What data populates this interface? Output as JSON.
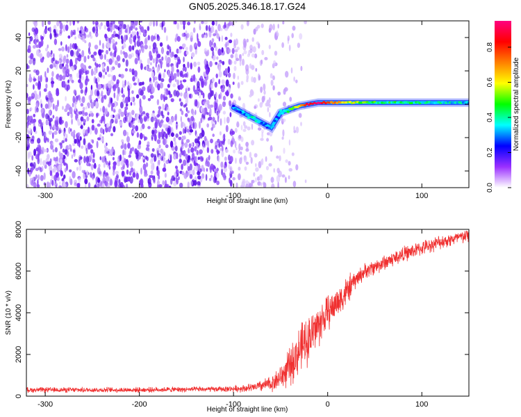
{
  "title": "GN05.2025.346.18.17.G24",
  "colors": {
    "scatter_base": "#7a2ef5",
    "ridge_blue": "#1f3dff",
    "ridge_cyan": "#00e5ff",
    "ridge_green": "#22e022",
    "ridge_red": "#ff2a00",
    "snr_line": "#f03030"
  },
  "chart_data": [
    {
      "type": "heatmap",
      "name": "spectrogram",
      "xlabel": "Height of straight line (km)",
      "ylabel": "Frequency (Hz)",
      "xlim": [
        -320,
        150
      ],
      "ylim": [
        -50,
        50
      ],
      "x_ticks": [
        -300,
        -200,
        -100,
        0,
        100
      ],
      "x_tick_labels": [
        "-300",
        "-200",
        "-100",
        "0",
        "100"
      ],
      "y_ticks": [
        -40,
        -20,
        0,
        20,
        40
      ],
      "y_tick_labels": [
        "-40",
        "-20",
        "0",
        "20",
        "40"
      ],
      "colorbar": {
        "label": "Normalized spectral amplitude",
        "range": [
          0,
          0.95
        ],
        "ticks": [
          0.0,
          0.2,
          0.4,
          0.6,
          0.8
        ],
        "tick_labels": [
          "0.0",
          "0.2",
          "0.4",
          "0.6",
          "0.8"
        ],
        "colormap": [
          "#ffffff",
          "#9b30ff",
          "#0000ff",
          "#00ffff",
          "#00ff00",
          "#ffff00",
          "#ff8000",
          "#ff0000",
          "#ff0080"
        ]
      },
      "noise_region_x": [
        -320,
        -60
      ],
      "ridge": {
        "x": [
          -100,
          -90,
          -80,
          -70,
          -60,
          -50,
          -40,
          -30,
          -20,
          -10,
          0,
          20,
          50,
          100,
          150
        ],
        "frequency": [
          -2,
          -5,
          -8,
          -11,
          -14,
          -5,
          -3,
          -1,
          0,
          1,
          1,
          1,
          1,
          1,
          1
        ],
        "amplitude": [
          0.2,
          0.3,
          0.35,
          0.3,
          0.25,
          0.3,
          0.5,
          0.7,
          0.85,
          0.9,
          0.8,
          0.6,
          0.45,
          0.4,
          0.35
        ]
      }
    },
    {
      "type": "line",
      "name": "snr",
      "xlabel": "Height of straight line (km)",
      "ylabel": "SNR (10 * v/v)",
      "xlim": [
        -320,
        150
      ],
      "ylim": [
        0,
        8000
      ],
      "x_ticks": [
        -300,
        -200,
        -100,
        0,
        100
      ],
      "x_tick_labels": [
        "-300",
        "-200",
        "-100",
        "0",
        "100"
      ],
      "y_ticks": [
        0,
        2000,
        4000,
        6000,
        8000
      ],
      "y_tick_labels": [
        "0",
        "2000",
        "4000",
        "6000",
        "8000"
      ],
      "series": [
        {
          "x": [
            -320,
            -280,
            -240,
            -200,
            -160,
            -120,
            -100,
            -80,
            -60,
            -50,
            -40,
            -30,
            -20,
            -10,
            0,
            10,
            20,
            30,
            40,
            60,
            80,
            100,
            120,
            150
          ],
          "values": [
            300,
            300,
            300,
            300,
            320,
            330,
            350,
            400,
            600,
            900,
            1400,
            2200,
            2800,
            3400,
            4000,
            4500,
            5000,
            5600,
            6000,
            6400,
            6800,
            7100,
            7400,
            7700
          ],
          "noise": [
            150,
            150,
            150,
            150,
            150,
            150,
            180,
            250,
            450,
            700,
            1100,
            1400,
            1400,
            1300,
            1000,
            900,
            900,
            500,
            450,
            450,
            450,
            400,
            400,
            400
          ]
        }
      ]
    }
  ]
}
